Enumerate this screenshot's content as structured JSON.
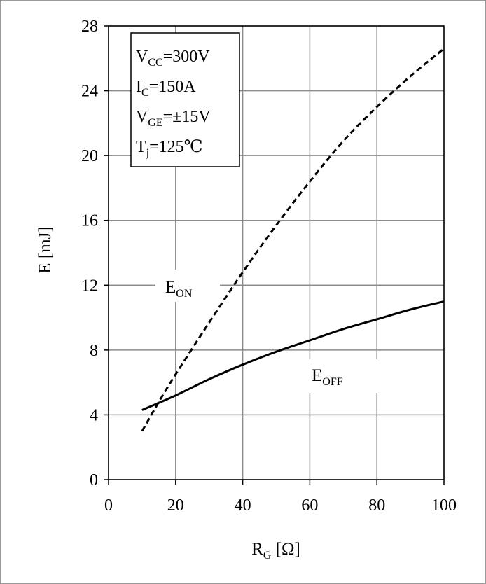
{
  "chart_data": {
    "type": "line",
    "xlabel": {
      "main": "R",
      "sub": "G",
      "unit": " [Ω]"
    },
    "ylabel": "E [mJ]",
    "xlim": [
      0,
      100
    ],
    "ylim": [
      0,
      28
    ],
    "xticks": [
      "0",
      "20",
      "40",
      "60",
      "80",
      "100"
    ],
    "yticks": [
      "0",
      "4",
      "8",
      "12",
      "16",
      "20",
      "24",
      "28"
    ],
    "grid": true,
    "conditions": [
      {
        "main": "V",
        "sub": "CC",
        "rest": "=300V"
      },
      {
        "main": "I",
        "sub": "C",
        "rest": "=150A"
      },
      {
        "main": "V",
        "sub": "GE",
        "rest": "=±15V"
      },
      {
        "main": "T",
        "sub": "j",
        "rest": "=125℃"
      }
    ],
    "series": [
      {
        "name": "E_ON",
        "label_main": "E",
        "label_sub": "ON",
        "style": "dashed",
        "x": [
          10,
          15,
          20,
          30,
          40,
          50,
          60,
          70,
          80,
          90,
          100
        ],
        "y": [
          3.0,
          4.8,
          6.5,
          9.7,
          12.8,
          15.7,
          18.4,
          20.9,
          23.0,
          24.9,
          26.6
        ]
      },
      {
        "name": "E_OFF",
        "label_main": "E",
        "label_sub": "OFF",
        "style": "solid",
        "x": [
          10,
          20,
          30,
          40,
          50,
          60,
          70,
          80,
          90,
          100
        ],
        "y": [
          4.3,
          5.2,
          6.2,
          7.1,
          7.9,
          8.6,
          9.3,
          9.9,
          10.5,
          11.0
        ]
      }
    ]
  }
}
